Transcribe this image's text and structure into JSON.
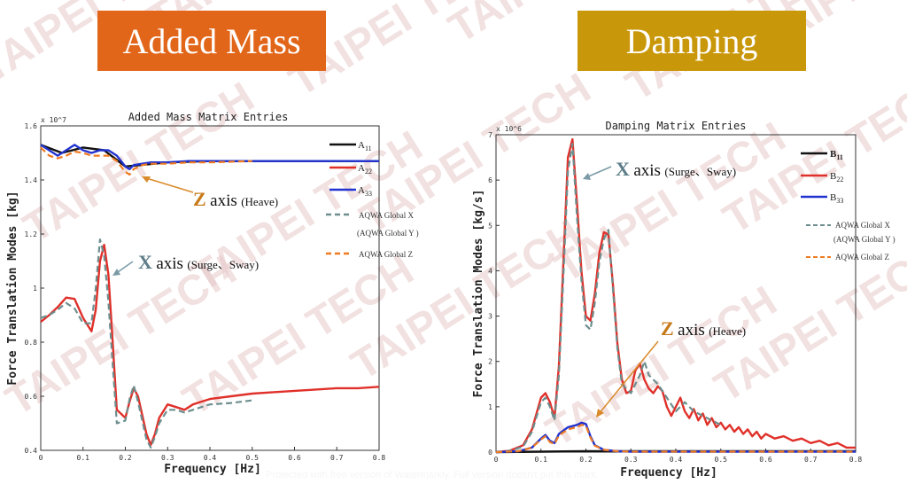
{
  "headers": {
    "left": {
      "label": "Added Mass",
      "color": "#e2661a"
    },
    "right": {
      "label": "Damping",
      "color": "#c9970a"
    }
  },
  "watermark": {
    "text": "TAIPEI TECH",
    "color": "#e8c9c9"
  },
  "footer_text": "Protected with free version of Watermarkly. Full version doesn't put this mark.",
  "chart_data": [
    {
      "type": "line",
      "title": "Added Mass Matrix Entries",
      "xlabel": "Frequency [Hz]",
      "ylabel": "Force Translation Modes [kg]",
      "y_exponent": "x 10^7",
      "xlim": [
        0,
        0.8
      ],
      "ylim": [
        0.4,
        1.6
      ],
      "x_ticks": [
        "0",
        "0.1",
        "0.2",
        "0.3",
        "0.4",
        "0.5",
        "0.6",
        "0.7",
        "0.8"
      ],
      "y_ticks": [
        "0.4",
        "0.6",
        "0.8",
        "1",
        "1.2",
        "1.4",
        "1.6"
      ],
      "legend": [
        {
          "sym": "A",
          "sub": "11"
        },
        {
          "sym": "A",
          "sub": "22"
        },
        {
          "sym": "A",
          "sub": "33"
        },
        {
          "text": "AQWA Global X"
        },
        {
          "text": "(AQWA Global Y )"
        },
        {
          "text": "AQWA Global Z"
        }
      ],
      "annotations": [
        {
          "letter": "Z",
          "word": "axis",
          "note": "(Heave)",
          "color": "#c77a19"
        },
        {
          "letter": "X",
          "word": "axis",
          "note": "(Surge、Sway)",
          "color": "#5d7d88"
        }
      ],
      "series": [
        {
          "name": "A22",
          "color": "#e0302a",
          "style": "solid",
          "x": [
            0,
            0.02,
            0.04,
            0.06,
            0.08,
            0.1,
            0.12,
            0.13,
            0.14,
            0.15,
            0.16,
            0.17,
            0.18,
            0.2,
            0.21,
            0.22,
            0.23,
            0.25,
            0.26,
            0.27,
            0.28,
            0.3,
            0.32,
            0.34,
            0.36,
            0.38,
            0.4,
            0.45,
            0.5,
            0.55,
            0.6,
            0.65,
            0.7,
            0.75,
            0.8
          ],
          "y": [
            0.875,
            0.9,
            0.93,
            0.965,
            0.96,
            0.89,
            0.84,
            0.92,
            1.1,
            1.16,
            1.05,
            0.8,
            0.55,
            0.52,
            0.58,
            0.63,
            0.6,
            0.46,
            0.42,
            0.46,
            0.52,
            0.57,
            0.56,
            0.55,
            0.57,
            0.58,
            0.59,
            0.6,
            0.61,
            0.615,
            0.62,
            0.625,
            0.63,
            0.63,
            0.635
          ]
        },
        {
          "name": "AQWA Global X",
          "color": "#6e8e8e",
          "style": "dashed",
          "x": [
            0,
            0.02,
            0.04,
            0.06,
            0.08,
            0.1,
            0.12,
            0.13,
            0.14,
            0.15,
            0.16,
            0.17,
            0.18,
            0.2,
            0.21,
            0.22,
            0.23,
            0.25,
            0.26,
            0.27,
            0.28,
            0.3,
            0.32,
            0.34,
            0.36,
            0.38,
            0.4,
            0.45,
            0.5
          ],
          "y": [
            0.89,
            0.9,
            0.92,
            0.945,
            0.925,
            0.87,
            0.87,
            1.0,
            1.18,
            1.12,
            0.95,
            0.72,
            0.5,
            0.51,
            0.59,
            0.64,
            0.58,
            0.44,
            0.41,
            0.45,
            0.5,
            0.55,
            0.55,
            0.54,
            0.55,
            0.56,
            0.57,
            0.575,
            0.585
          ]
        },
        {
          "name": "A11",
          "color": "#111111",
          "style": "solid",
          "x": [
            0,
            0.05,
            0.1,
            0.15,
            0.2,
            0.3,
            0.4,
            0.5,
            0.6,
            0.7,
            0.8
          ],
          "y": [
            1.53,
            1.5,
            1.52,
            1.51,
            1.45,
            1.465,
            1.47,
            1.47,
            1.47,
            1.47,
            1.47
          ]
        },
        {
          "name": "A33",
          "color": "#2233d0",
          "style": "solid",
          "x": [
            0,
            0.02,
            0.04,
            0.06,
            0.08,
            0.1,
            0.12,
            0.14,
            0.16,
            0.18,
            0.2,
            0.21,
            0.22,
            0.24,
            0.26,
            0.3,
            0.35,
            0.4,
            0.5,
            0.6,
            0.7,
            0.8
          ],
          "y": [
            1.53,
            1.51,
            1.49,
            1.51,
            1.53,
            1.51,
            1.5,
            1.51,
            1.51,
            1.49,
            1.45,
            1.44,
            1.455,
            1.46,
            1.465,
            1.465,
            1.47,
            1.47,
            1.47,
            1.47,
            1.47,
            1.47
          ]
        },
        {
          "name": "AQWA Global Z",
          "color": "#f07a20",
          "style": "dashed",
          "x": [
            0,
            0.02,
            0.04,
            0.06,
            0.08,
            0.1,
            0.12,
            0.14,
            0.16,
            0.18,
            0.2,
            0.21,
            0.22,
            0.24,
            0.26,
            0.3,
            0.35,
            0.4,
            0.5
          ],
          "y": [
            1.52,
            1.49,
            1.48,
            1.49,
            1.505,
            1.5,
            1.49,
            1.49,
            1.49,
            1.47,
            1.43,
            1.42,
            1.44,
            1.455,
            1.46,
            1.46,
            1.465,
            1.465,
            1.47
          ]
        }
      ]
    },
    {
      "type": "line",
      "title": "Damping Matrix Entries",
      "xlabel": "Frequency [Hz]",
      "ylabel": "Force Translation Modes [kg/s]",
      "y_exponent": "x 10^6",
      "xlim": [
        0,
        0.8
      ],
      "ylim": [
        0,
        7
      ],
      "x_ticks": [
        "0",
        "0.1",
        "0.2",
        "0.3",
        "0.4",
        "0.5",
        "0.6",
        "0.7",
        "0.8"
      ],
      "y_ticks": [
        "0",
        "1",
        "2",
        "3",
        "4",
        "5",
        "6",
        "7"
      ],
      "legend": [
        {
          "sym": "B",
          "sub": "11"
        },
        {
          "sym": "B",
          "sub": "22"
        },
        {
          "sym": "B",
          "sub": "33"
        },
        {
          "text": "AQWA Global X"
        },
        {
          "text": "(AQWA Global Y )"
        },
        {
          "text": "AQWA Global Z"
        }
      ],
      "annotations": [
        {
          "letter": "X",
          "word": "axis",
          "note": "(Surge、Sway)",
          "color": "#5d7d88"
        },
        {
          "letter": "Z",
          "word": "axis",
          "note": "(Heave)",
          "color": "#c77a19"
        }
      ],
      "series": [
        {
          "name": "B22",
          "color": "#e0302a",
          "style": "solid",
          "x": [
            0,
            0.03,
            0.06,
            0.08,
            0.1,
            0.11,
            0.12,
            0.13,
            0.14,
            0.15,
            0.16,
            0.17,
            0.18,
            0.19,
            0.2,
            0.21,
            0.22,
            0.23,
            0.24,
            0.25,
            0.26,
            0.27,
            0.28,
            0.29,
            0.3,
            0.31,
            0.32,
            0.33,
            0.34,
            0.35,
            0.36,
            0.37,
            0.38,
            0.39,
            0.4,
            0.41,
            0.42,
            0.43,
            0.44,
            0.45,
            0.46,
            0.47,
            0.48,
            0.49,
            0.5,
            0.51,
            0.52,
            0.53,
            0.54,
            0.55,
            0.56,
            0.57,
            0.58,
            0.59,
            0.6,
            0.62,
            0.64,
            0.66,
            0.68,
            0.7,
            0.72,
            0.74,
            0.76,
            0.78,
            0.8
          ],
          "y": [
            0,
            0.03,
            0.15,
            0.5,
            1.2,
            1.3,
            1.1,
            0.75,
            1.9,
            4.2,
            6.5,
            6.9,
            5.5,
            4.0,
            3.0,
            2.9,
            3.5,
            4.4,
            4.85,
            4.8,
            3.7,
            2.4,
            1.6,
            1.3,
            1.35,
            1.8,
            1.95,
            1.6,
            1.4,
            1.3,
            1.45,
            1.35,
            1.0,
            0.8,
            1.0,
            1.2,
            0.9,
            0.75,
            0.95,
            0.7,
            0.85,
            0.6,
            0.75,
            0.55,
            0.65,
            0.5,
            0.6,
            0.45,
            0.55,
            0.4,
            0.5,
            0.35,
            0.45,
            0.3,
            0.4,
            0.3,
            0.35,
            0.25,
            0.3,
            0.2,
            0.25,
            0.15,
            0.2,
            0.1,
            0.1
          ]
        },
        {
          "name": "AQWA Global X",
          "color": "#6e8e8e",
          "style": "dashed",
          "x": [
            0,
            0.03,
            0.06,
            0.08,
            0.1,
            0.11,
            0.12,
            0.13,
            0.14,
            0.15,
            0.16,
            0.17,
            0.18,
            0.19,
            0.2,
            0.21,
            0.22,
            0.23,
            0.24,
            0.25,
            0.26,
            0.27,
            0.28,
            0.3,
            0.32,
            0.33,
            0.34,
            0.36,
            0.38,
            0.4,
            0.42,
            0.44,
            0.46,
            0.48,
            0.5
          ],
          "y": [
            0,
            0.03,
            0.12,
            0.45,
            1.1,
            1.2,
            1.0,
            0.7,
            1.7,
            3.9,
            6.2,
            6.8,
            5.2,
            3.8,
            2.8,
            2.7,
            3.3,
            4.2,
            4.7,
            4.9,
            3.6,
            2.3,
            1.5,
            1.3,
            1.7,
            2.0,
            1.7,
            1.5,
            1.2,
            0.9,
            1.1,
            0.9,
            0.8,
            0.7,
            0.6
          ]
        },
        {
          "name": "B11",
          "color": "#111111",
          "style": "solid",
          "x": [
            0,
            0.1,
            0.2,
            0.3,
            0.4,
            0.5,
            0.6,
            0.7,
            0.8
          ],
          "y": [
            0,
            0.01,
            0.02,
            0.02,
            0.02,
            0.02,
            0.02,
            0.02,
            0.02
          ]
        },
        {
          "name": "B33",
          "color": "#2233d0",
          "style": "solid",
          "x": [
            0,
            0.05,
            0.08,
            0.1,
            0.11,
            0.12,
            0.13,
            0.14,
            0.16,
            0.18,
            0.19,
            0.2,
            0.21,
            0.22,
            0.24,
            0.27,
            0.3,
            0.4,
            0.5,
            0.6,
            0.7,
            0.8
          ],
          "y": [
            0,
            0.02,
            0.1,
            0.3,
            0.38,
            0.25,
            0.2,
            0.4,
            0.55,
            0.6,
            0.65,
            0.62,
            0.35,
            0.15,
            0.05,
            0.02,
            0.01,
            0.01,
            0.01,
            0.01,
            0.01,
            0.01
          ]
        },
        {
          "name": "AQWA Global Z",
          "color": "#f07a20",
          "style": "dashed",
          "x": [
            0,
            0.05,
            0.08,
            0.1,
            0.11,
            0.12,
            0.13,
            0.14,
            0.16,
            0.18,
            0.19,
            0.2,
            0.21,
            0.22,
            0.24,
            0.27,
            0.3,
            0.4,
            0.5,
            0.6,
            0.7,
            0.8
          ],
          "y": [
            0,
            0.02,
            0.1,
            0.28,
            0.35,
            0.22,
            0.18,
            0.37,
            0.5,
            0.55,
            0.6,
            0.58,
            0.32,
            0.14,
            0.05,
            0.02,
            0.01,
            0.01,
            0.01,
            0.01,
            0.01,
            0.01
          ]
        }
      ]
    }
  ]
}
